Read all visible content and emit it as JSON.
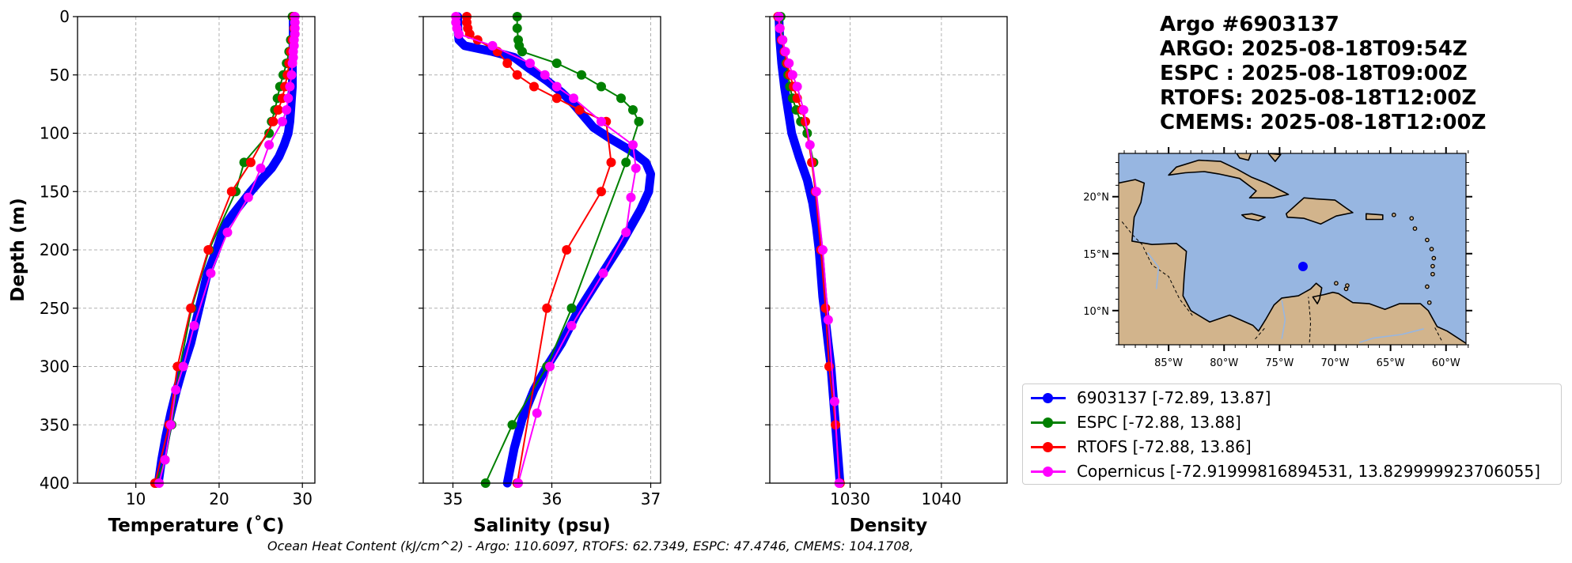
{
  "chart_data": [
    {
      "type": "line",
      "name": "temperature",
      "xlabel": "Temperature (˚C)",
      "ylabel": "Depth (m)",
      "xlim": [
        3,
        31.5
      ],
      "ylim": [
        400,
        0
      ],
      "xticks": [
        10,
        20,
        30
      ],
      "yticks": [
        0,
        50,
        100,
        150,
        200,
        250,
        300,
        350,
        400
      ],
      "grid": true,
      "series": [
        {
          "name": "Argo",
          "color": "#0000ff",
          "x": [
            28.9,
            28.9,
            28.8,
            28.8,
            28.7,
            28.6,
            28.5,
            28.3,
            27.8,
            27.2,
            26.3,
            25.0,
            23.8,
            22.7,
            21.6,
            20.6,
            19.7,
            18.6,
            17.6,
            16.6,
            15.7,
            14.9,
            14.2,
            13.6,
            13.1,
            12.7
          ],
          "depth": [
            0,
            20,
            40,
            60,
            70,
            80,
            90,
            100,
            110,
            120,
            130,
            140,
            150,
            160,
            170,
            180,
            200,
            220,
            250,
            280,
            300,
            320,
            340,
            360,
            380,
            400
          ]
        },
        {
          "name": "ESPC",
          "color": "#008000",
          "x": [
            28.8,
            28.6,
            28.4,
            28.1,
            27.7,
            27.3,
            27.0,
            26.7,
            26.3,
            26.0,
            23.0,
            22.0,
            18.8,
            16.7,
            15.3,
            14.3,
            13.5,
            12.4
          ],
          "depth": [
            0,
            20,
            30,
            40,
            50,
            60,
            70,
            80,
            90,
            100,
            125,
            150,
            200,
            250,
            300,
            350,
            380,
            400
          ]
        },
        {
          "name": "RTOFS",
          "color": "#ff0000",
          "x": [
            29.0,
            29.0,
            28.8,
            28.6,
            28.4,
            28.2,
            27.9,
            27.6,
            27.1,
            26.5,
            23.8,
            21.5,
            18.7,
            16.6,
            15.0,
            14.0,
            12.3
          ],
          "depth": [
            0,
            10,
            20,
            30,
            40,
            50,
            60,
            70,
            80,
            90,
            125,
            150,
            200,
            250,
            300,
            350,
            400
          ]
        },
        {
          "name": "Copernicus",
          "color": "#ff00ff",
          "x": [
            29.1,
            29.1,
            29.1,
            29.1,
            29.0,
            29.0,
            28.9,
            28.9,
            28.8,
            28.7,
            28.5,
            28.3,
            28.1,
            27.6,
            26.0,
            25.0,
            23.5,
            21.0,
            19.0,
            17.0,
            15.7,
            14.8,
            14.2,
            13.5,
            12.8
          ],
          "depth": [
            0,
            5,
            10,
            15,
            20,
            25,
            30,
            35,
            40,
            50,
            60,
            70,
            80,
            90,
            110,
            130,
            155,
            185,
            220,
            265,
            300,
            320,
            350,
            380,
            400
          ]
        }
      ]
    },
    {
      "type": "line",
      "name": "salinity",
      "xlabel": "Salinity (psu)",
      "xlim": [
        34.7,
        37.1
      ],
      "ylim": [
        400,
        0
      ],
      "xticks": [
        35,
        36,
        37
      ],
      "grid": true,
      "series": [
        {
          "name": "Argo",
          "color": "#0000ff",
          "x": [
            35.05,
            35.05,
            35.06,
            35.12,
            35.4,
            35.62,
            35.78,
            35.95,
            36.1,
            36.22,
            36.32,
            36.42,
            36.6,
            36.8,
            36.95,
            37.0,
            36.98,
            36.9,
            36.8,
            36.7,
            36.55,
            36.4,
            36.25,
            36.1,
            35.95,
            35.82,
            35.7,
            35.62,
            35.55
          ],
          "depth": [
            0,
            10,
            20,
            25,
            30,
            35,
            45,
            55,
            65,
            75,
            85,
            95,
            105,
            115,
            125,
            135,
            150,
            165,
            180,
            195,
            215,
            235,
            255,
            280,
            300,
            320,
            345,
            370,
            400
          ]
        },
        {
          "name": "ESPC",
          "color": "#008000",
          "x": [
            35.65,
            35.65,
            35.66,
            35.67,
            35.7,
            36.05,
            36.3,
            36.5,
            36.7,
            36.82,
            36.88,
            36.75,
            36.2,
            35.95,
            35.6,
            35.33
          ],
          "depth": [
            0,
            10,
            20,
            25,
            30,
            40,
            50,
            60,
            70,
            80,
            90,
            125,
            250,
            300,
            350,
            400
          ]
        },
        {
          "name": "RTOFS",
          "color": "#ff0000",
          "x": [
            35.14,
            35.14,
            35.15,
            35.17,
            35.25,
            35.45,
            35.55,
            35.65,
            35.82,
            36.05,
            36.28,
            36.55,
            36.6,
            36.5,
            36.15,
            35.95,
            35.65
          ],
          "depth": [
            0,
            5,
            10,
            15,
            20,
            30,
            40,
            50,
            60,
            70,
            80,
            90,
            125,
            150,
            200,
            250,
            400
          ]
        },
        {
          "name": "Copernicus",
          "color": "#ff00ff",
          "x": [
            35.03,
            35.03,
            35.04,
            35.06,
            35.4,
            35.78,
            35.93,
            36.05,
            36.22,
            36.5,
            36.82,
            36.85,
            36.8,
            36.75,
            36.52,
            36.2,
            35.98,
            35.85,
            35.66
          ],
          "depth": [
            0,
            5,
            10,
            15,
            25,
            40,
            50,
            60,
            70,
            90,
            110,
            130,
            155,
            185,
            220,
            265,
            300,
            340,
            400
          ]
        }
      ]
    },
    {
      "type": "line",
      "name": "density",
      "xlabel": "Density",
      "xlim": [
        1021.2,
        1047.2
      ],
      "ylim": [
        400,
        0
      ],
      "xticks": [
        1030,
        1040
      ],
      "grid": true,
      "series": [
        {
          "name": "Argo",
          "color": "#0000ff",
          "x": [
            1022.2,
            1022.3,
            1022.5,
            1022.8,
            1023.2,
            1023.6,
            1024.4,
            1025.3,
            1025.9,
            1026.3,
            1026.6,
            1026.8,
            1027.0,
            1027.3,
            1027.6,
            1027.9,
            1028.1,
            1028.3,
            1028.5,
            1028.7,
            1028.9
          ],
          "depth": [
            0,
            20,
            40,
            60,
            80,
            100,
            120,
            140,
            160,
            180,
            200,
            220,
            240,
            260,
            280,
            300,
            320,
            340,
            360,
            380,
            400
          ]
        },
        {
          "name": "ESPC",
          "color": "#008000",
          "x": [
            1022.4,
            1022.6,
            1022.8,
            1023.0,
            1023.2,
            1023.4,
            1023.7,
            1024.1,
            1024.6,
            1025.3,
            1026.0
          ],
          "depth": [
            0,
            20,
            30,
            40,
            50,
            60,
            70,
            80,
            90,
            100,
            125
          ]
        },
        {
          "name": "RTOFS",
          "color": "#ff0000",
          "x": [
            1022.1,
            1022.3,
            1022.5,
            1022.8,
            1023.1,
            1023.4,
            1023.8,
            1024.2,
            1024.7,
            1025.1,
            1025.8,
            1026.2,
            1026.8,
            1027.3,
            1027.7,
            1028.4,
            1028.9
          ],
          "depth": [
            0,
            10,
            20,
            30,
            40,
            50,
            60,
            70,
            80,
            90,
            125,
            150,
            200,
            250,
            300,
            350,
            400
          ]
        },
        {
          "name": "Copernicus",
          "color": "#ff00ff",
          "x": [
            1022.2,
            1022.3,
            1022.6,
            1022.9,
            1023.3,
            1023.7,
            1024.2,
            1024.9,
            1025.6,
            1026.3,
            1027.0,
            1027.6,
            1028.3,
            1028.8
          ],
          "depth": [
            0,
            10,
            20,
            30,
            40,
            50,
            60,
            80,
            110,
            150,
            200,
            260,
            330,
            400
          ]
        }
      ]
    }
  ],
  "map": {
    "lon_range": [
      -89.5,
      -58.2
    ],
    "lat_range": [
      7.0,
      23.8
    ],
    "lon_ticks": [
      {
        "v": -85,
        "label": "85°W"
      },
      {
        "v": -80,
        "label": "80°W"
      },
      {
        "v": -75,
        "label": "75°W"
      },
      {
        "v": -70,
        "label": "70°W"
      },
      {
        "v": -65,
        "label": "65°W"
      },
      {
        "v": -60,
        "label": "60°W"
      }
    ],
    "lat_ticks": [
      {
        "v": 20,
        "label": "20°N"
      },
      {
        "v": 15,
        "label": "15°N"
      },
      {
        "v": 10,
        "label": "10°N"
      }
    ],
    "float_position": [
      -72.89,
      13.87
    ],
    "water_color": "#97b6e1",
    "land_color": "#d2b48c"
  },
  "info": {
    "title": "Argo #6903137",
    "argo_time": "ARGO: 2025-08-18T09:54Z",
    "espc_time": "ESPC : 2025-08-18T09:00Z",
    "rtofs_time": "RTOFS: 2025-08-18T12:00Z",
    "cmems_time": "CMEMS: 2025-08-18T12:00Z"
  },
  "legend": [
    {
      "label": "6903137 [-72.89, 13.87]",
      "color": "#0000ff"
    },
    {
      "label": "ESPC [-72.88, 13.88]",
      "color": "#008000"
    },
    {
      "label": "RTOFS [-72.88, 13.86]",
      "color": "#ff0000"
    },
    {
      "label": "Copernicus [-72.91999816894531, 13.829999923706055]",
      "color": "#ff00ff"
    }
  ],
  "footer": "Ocean Heat Content (kJ/cm^2) - Argo: 110.6097,  RTOFS: 62.7349,  ESPC: 47.4746,  CMEMS: 104.1708,"
}
